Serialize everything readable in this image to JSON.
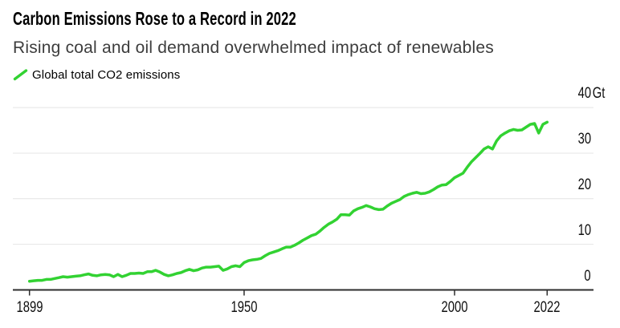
{
  "header": {
    "title": "Carbon Emissions Rose to a Record in 2022",
    "subtitle": "Rising coal and oil demand overwhelmed impact of renewables"
  },
  "legend": {
    "items": [
      {
        "label": "Global total CO2 emissions",
        "marker": "line-slash-icon",
        "color": "#32d232"
      }
    ]
  },
  "colors": {
    "background": "#ffffff",
    "title": "#000000",
    "subtitle": "#3d3d3d",
    "line": "#32d232",
    "grid": "#e4e4e4",
    "axis": "#2e2e2e",
    "tick_label": "#111111"
  },
  "chart_data": {
    "type": "line",
    "title": "Carbon Emissions Rose to a Record in 2022",
    "subtitle": "Rising coal and oil demand overwhelmed impact of renewables",
    "xlabel": "",
    "ylabel": "Gt",
    "y_unit": "Gt",
    "x_domain": [
      1895,
      2033
    ],
    "y_domain": [
      0,
      40
    ],
    "grid": "horizontal",
    "legend_position": "top-left",
    "y_label_position": "right",
    "x_ticks": [
      {
        "value": 1899,
        "label": "1899"
      },
      {
        "value": 1950,
        "label": "1950"
      },
      {
        "value": 2000,
        "label": "2000"
      },
      {
        "value": 2022,
        "label": "2022"
      }
    ],
    "y_ticks": [
      {
        "value": 40,
        "label": "40",
        "unit": "Gt"
      },
      {
        "value": 30,
        "label": "30",
        "unit": ""
      },
      {
        "value": 20,
        "label": "20",
        "unit": ""
      },
      {
        "value": 10,
        "label": "10",
        "unit": ""
      },
      {
        "value": 0,
        "label": "0",
        "unit": ""
      }
    ],
    "series": [
      {
        "name": "Global total CO2 emissions",
        "color": "#32d232",
        "points": [
          [
            1899,
            1.9
          ],
          [
            1900,
            2.0
          ],
          [
            1901,
            2.1
          ],
          [
            1902,
            2.1
          ],
          [
            1903,
            2.3
          ],
          [
            1904,
            2.3
          ],
          [
            1905,
            2.5
          ],
          [
            1906,
            2.7
          ],
          [
            1907,
            2.9
          ],
          [
            1908,
            2.8
          ],
          [
            1909,
            2.9
          ],
          [
            1910,
            3.0
          ],
          [
            1911,
            3.1
          ],
          [
            1912,
            3.3
          ],
          [
            1913,
            3.5
          ],
          [
            1914,
            3.2
          ],
          [
            1915,
            3.1
          ],
          [
            1916,
            3.3
          ],
          [
            1917,
            3.4
          ],
          [
            1918,
            3.3
          ],
          [
            1919,
            2.9
          ],
          [
            1920,
            3.4
          ],
          [
            1921,
            2.9
          ],
          [
            1922,
            3.2
          ],
          [
            1923,
            3.6
          ],
          [
            1924,
            3.6
          ],
          [
            1925,
            3.7
          ],
          [
            1926,
            3.6
          ],
          [
            1927,
            4.0
          ],
          [
            1928,
            4.0
          ],
          [
            1929,
            4.3
          ],
          [
            1930,
            3.9
          ],
          [
            1931,
            3.4
          ],
          [
            1932,
            3.1
          ],
          [
            1933,
            3.3
          ],
          [
            1934,
            3.6
          ],
          [
            1935,
            3.8
          ],
          [
            1936,
            4.2
          ],
          [
            1937,
            4.5
          ],
          [
            1938,
            4.2
          ],
          [
            1939,
            4.4
          ],
          [
            1940,
            4.8
          ],
          [
            1941,
            5.0
          ],
          [
            1942,
            5.0
          ],
          [
            1943,
            5.1
          ],
          [
            1944,
            5.2
          ],
          [
            1945,
            4.3
          ],
          [
            1946,
            4.6
          ],
          [
            1947,
            5.1
          ],
          [
            1948,
            5.3
          ],
          [
            1949,
            5.1
          ],
          [
            1950,
            6.0
          ],
          [
            1951,
            6.4
          ],
          [
            1952,
            6.6
          ],
          [
            1953,
            6.7
          ],
          [
            1954,
            6.9
          ],
          [
            1955,
            7.5
          ],
          [
            1956,
            8.0
          ],
          [
            1957,
            8.3
          ],
          [
            1958,
            8.6
          ],
          [
            1959,
            9.0
          ],
          [
            1960,
            9.4
          ],
          [
            1961,
            9.4
          ],
          [
            1962,
            9.8
          ],
          [
            1963,
            10.3
          ],
          [
            1964,
            10.9
          ],
          [
            1965,
            11.4
          ],
          [
            1966,
            11.9
          ],
          [
            1967,
            12.2
          ],
          [
            1968,
            12.9
          ],
          [
            1969,
            13.7
          ],
          [
            1970,
            14.4
          ],
          [
            1971,
            14.9
          ],
          [
            1972,
            15.5
          ],
          [
            1973,
            16.5
          ],
          [
            1974,
            16.5
          ],
          [
            1975,
            16.4
          ],
          [
            1976,
            17.3
          ],
          [
            1977,
            17.8
          ],
          [
            1978,
            18.1
          ],
          [
            1979,
            18.5
          ],
          [
            1980,
            18.2
          ],
          [
            1981,
            17.8
          ],
          [
            1982,
            17.6
          ],
          [
            1983,
            17.7
          ],
          [
            1984,
            18.4
          ],
          [
            1985,
            19.0
          ],
          [
            1986,
            19.4
          ],
          [
            1987,
            19.8
          ],
          [
            1988,
            20.5
          ],
          [
            1989,
            20.9
          ],
          [
            1990,
            21.2
          ],
          [
            1991,
            21.4
          ],
          [
            1992,
            21.1
          ],
          [
            1993,
            21.2
          ],
          [
            1994,
            21.5
          ],
          [
            1995,
            22.0
          ],
          [
            1996,
            22.6
          ],
          [
            1997,
            23.0
          ],
          [
            1998,
            23.1
          ],
          [
            1999,
            23.8
          ],
          [
            2000,
            24.6
          ],
          [
            2001,
            25.1
          ],
          [
            2002,
            25.6
          ],
          [
            2003,
            26.9
          ],
          [
            2004,
            28.1
          ],
          [
            2005,
            29.0
          ],
          [
            2006,
            29.9
          ],
          [
            2007,
            30.9
          ],
          [
            2008,
            31.4
          ],
          [
            2009,
            30.9
          ],
          [
            2010,
            32.7
          ],
          [
            2011,
            33.8
          ],
          [
            2012,
            34.4
          ],
          [
            2013,
            34.9
          ],
          [
            2014,
            35.2
          ],
          [
            2015,
            35.0
          ],
          [
            2016,
            35.1
          ],
          [
            2017,
            35.7
          ],
          [
            2018,
            36.3
          ],
          [
            2019,
            36.5
          ],
          [
            2020,
            34.4
          ],
          [
            2021,
            36.3
          ],
          [
            2022,
            36.8
          ]
        ]
      }
    ]
  }
}
